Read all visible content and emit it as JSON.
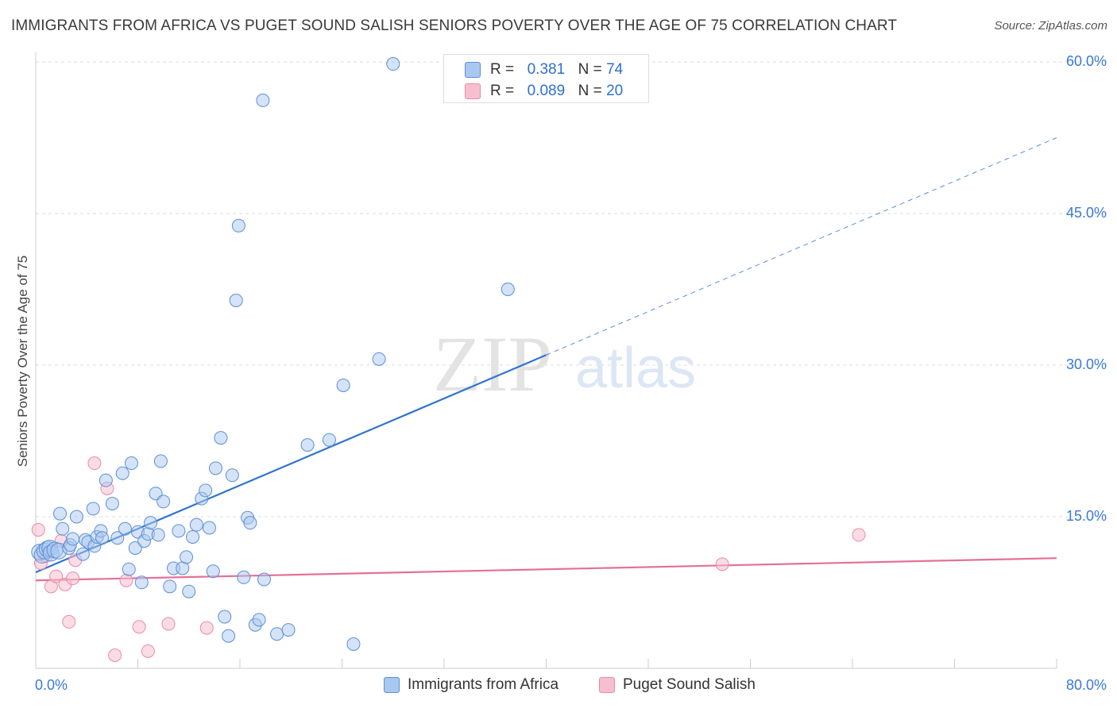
{
  "title": "IMMIGRANTS FROM AFRICA VS PUGET SOUND SALISH SENIORS POVERTY OVER THE AGE OF 75 CORRELATION CHART",
  "source": "Source: ZipAtlas.com",
  "legend": {
    "r_label": "R =",
    "n_label": "N =",
    "rows": [
      {
        "r": "0.381",
        "n": "74"
      },
      {
        "r": "0.089",
        "n": "20"
      }
    ]
  },
  "watermark": {
    "zip": "ZIP",
    "atlas": "atlas"
  },
  "colors": {
    "blue_fill": "#a9c8f0",
    "blue_stroke": "#5b8fd6",
    "blue_line": "#2f74d0",
    "pink_fill": "#f6bfd0",
    "pink_stroke": "#e98aa8",
    "pink_line": "#e4709a",
    "axis_text": "#3b78d8",
    "grid": "#dddddd"
  },
  "chart_data": {
    "type": "scatter",
    "title": "IMMIGRANTS FROM AFRICA VS PUGET SOUND SALISH SENIORS POVERTY OVER THE AGE OF 75 CORRELATION CHART",
    "xlabel": "",
    "ylabel": "Seniors Poverty Over the Age of 75",
    "xlim": [
      0,
      80
    ],
    "ylim": [
      0,
      60
    ],
    "x_tick_labels": [
      "0.0%",
      "80.0%"
    ],
    "y_ticks": [
      15,
      30,
      45,
      60
    ],
    "y_tick_labels": [
      "15.0%",
      "30.0%",
      "45.0%",
      "60.0%"
    ],
    "series": [
      {
        "name": "Immigrants from Africa",
        "color": "blue",
        "R": 0.381,
        "N": 74,
        "trend": {
          "x0": 0,
          "y0": 9.5,
          "x1": 40,
          "y1": 31.0,
          "dash_to_x": 80,
          "dash_to_y": 52.5
        },
        "points": [
          [
            0.3,
            11.5
          ],
          [
            0.5,
            11.2
          ],
          [
            0.7,
            11.6
          ],
          [
            0.9,
            11.8
          ],
          [
            1.1,
            11.9
          ],
          [
            1.2,
            11.4
          ],
          [
            1.5,
            11.7
          ],
          [
            1.8,
            11.6
          ],
          [
            1.9,
            15.3
          ],
          [
            2.1,
            13.8
          ],
          [
            2.6,
            11.9
          ],
          [
            2.7,
            12.2
          ],
          [
            2.9,
            12.8
          ],
          [
            3.2,
            15.0
          ],
          [
            3.7,
            11.3
          ],
          [
            3.9,
            12.7
          ],
          [
            4.1,
            12.5
          ],
          [
            4.6,
            12.1
          ],
          [
            4.5,
            15.8
          ],
          [
            4.8,
            13.0
          ],
          [
            5.1,
            13.6
          ],
          [
            5.2,
            12.9
          ],
          [
            5.5,
            18.6
          ],
          [
            6.0,
            16.3
          ],
          [
            6.4,
            12.9
          ],
          [
            6.8,
            19.3
          ],
          [
            7.0,
            13.8
          ],
          [
            7.3,
            9.8
          ],
          [
            7.5,
            20.3
          ],
          [
            7.8,
            11.9
          ],
          [
            8.0,
            13.5
          ],
          [
            8.3,
            8.5
          ],
          [
            8.5,
            12.6
          ],
          [
            8.8,
            13.3
          ],
          [
            9.0,
            14.4
          ],
          [
            9.4,
            17.3
          ],
          [
            9.6,
            13.2
          ],
          [
            9.8,
            20.5
          ],
          [
            10.0,
            16.5
          ],
          [
            10.5,
            8.1
          ],
          [
            10.8,
            9.9
          ],
          [
            11.2,
            13.6
          ],
          [
            11.5,
            9.9
          ],
          [
            11.8,
            11.0
          ],
          [
            12.0,
            7.6
          ],
          [
            12.3,
            13.0
          ],
          [
            12.6,
            14.2
          ],
          [
            13.0,
            16.8
          ],
          [
            13.3,
            17.6
          ],
          [
            13.6,
            13.9
          ],
          [
            13.9,
            9.6
          ],
          [
            14.1,
            19.8
          ],
          [
            14.5,
            22.8
          ],
          [
            14.8,
            5.1
          ],
          [
            15.1,
            3.2
          ],
          [
            15.4,
            19.1
          ],
          [
            15.7,
            36.4
          ],
          [
            15.9,
            43.8
          ],
          [
            16.3,
            9.0
          ],
          [
            16.6,
            14.9
          ],
          [
            16.8,
            14.4
          ],
          [
            17.2,
            4.3
          ],
          [
            17.5,
            4.8
          ],
          [
            17.8,
            56.2
          ],
          [
            17.9,
            8.8
          ],
          [
            18.9,
            3.4
          ],
          [
            19.8,
            3.8
          ],
          [
            21.3,
            22.1
          ],
          [
            23.0,
            22.6
          ],
          [
            24.1,
            28.0
          ],
          [
            24.9,
            2.4
          ],
          [
            26.9,
            30.6
          ],
          [
            28.0,
            59.8
          ],
          [
            37.0,
            37.5
          ]
        ]
      },
      {
        "name": "Puget Sound Salish",
        "color": "pink",
        "R": 0.089,
        "N": 20,
        "trend": {
          "x0": 0,
          "y0": 8.7,
          "x1": 80,
          "y1": 10.9
        },
        "points": [
          [
            0.2,
            13.7
          ],
          [
            0.4,
            10.4
          ],
          [
            0.8,
            11.1
          ],
          [
            1.2,
            8.1
          ],
          [
            1.6,
            9.1
          ],
          [
            2.0,
            12.6
          ],
          [
            2.3,
            8.3
          ],
          [
            2.6,
            4.6
          ],
          [
            2.9,
            8.9
          ],
          [
            3.1,
            10.7
          ],
          [
            4.6,
            20.3
          ],
          [
            5.6,
            17.8
          ],
          [
            6.2,
            1.3
          ],
          [
            7.1,
            8.7
          ],
          [
            8.1,
            4.1
          ],
          [
            8.8,
            1.7
          ],
          [
            10.4,
            4.4
          ],
          [
            13.4,
            4.0
          ],
          [
            53.8,
            10.3
          ],
          [
            64.5,
            13.2
          ]
        ]
      }
    ],
    "legend_position": "top-center"
  },
  "bottom_legend": [
    "Immigrants from Africa",
    "Puget Sound Salish"
  ]
}
